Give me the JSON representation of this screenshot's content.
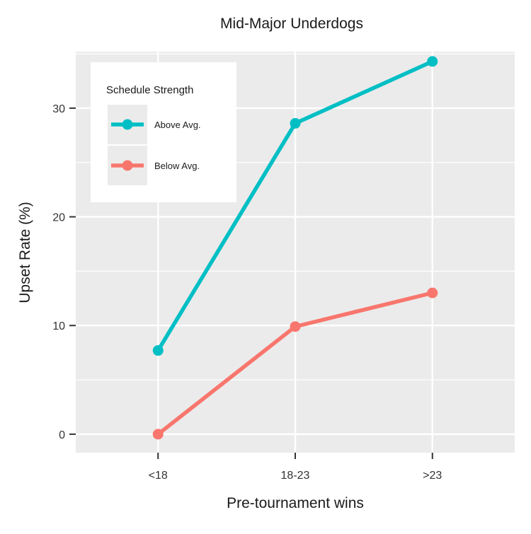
{
  "chart_data": {
    "type": "line",
    "title": "Mid-Major Underdogs",
    "xlabel": "Pre-tournament wins",
    "ylabel": "Upset Rate (%)",
    "categories": [
      "<18",
      "18-23",
      ">23"
    ],
    "ylim": [
      -1.7,
      35.2
    ],
    "yticks": [
      0,
      10,
      20,
      30
    ],
    "grid": true,
    "legend": {
      "title": "Schedule Strength",
      "placement": "top-left"
    },
    "series": [
      {
        "name": "Above Avg.",
        "color": "#00BFC4",
        "values": [
          7.7,
          28.6,
          34.3
        ]
      },
      {
        "name": "Below Avg.",
        "color": "#F8766D",
        "values": [
          0.0,
          9.9,
          13.0
        ]
      }
    ],
    "panel_color": "#EBEBEB",
    "grid_color": "#FFFFFF"
  }
}
